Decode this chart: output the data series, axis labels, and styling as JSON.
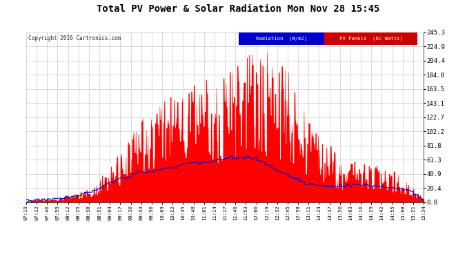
{
  "title": "Total PV Power & Solar Radiation Mon Nov 28 15:45",
  "copyright": "Copyright 2016 Cartronics.com",
  "legend_radiation": "Radiation  (W/m2)",
  "legend_pv": "PV Panels  (DC Watts)",
  "y_right_ticks": [
    0.0,
    20.4,
    40.9,
    61.3,
    81.8,
    102.2,
    122.7,
    143.1,
    163.5,
    184.0,
    204.4,
    224.9,
    245.3
  ],
  "x_tick_labels": [
    "07:19",
    "07:32",
    "07:46",
    "07:59",
    "08:12",
    "08:25",
    "08:38",
    "08:51",
    "09:04",
    "09:17",
    "09:30",
    "09:43",
    "09:56",
    "10:09",
    "10:22",
    "10:35",
    "10:48",
    "11:01",
    "11:14",
    "11:27",
    "11:40",
    "11:53",
    "12:06",
    "12:19",
    "12:32",
    "12:45",
    "12:58",
    "13:11",
    "13:24",
    "13:37",
    "13:50",
    "14:03",
    "14:16",
    "14:29",
    "14:42",
    "14:55",
    "15:08",
    "15:21",
    "15:34"
  ],
  "pv_color": "#ff0000",
  "radiation_color": "#0000cc",
  "bg_color": "#ffffff",
  "plot_bg_color": "#ffffff",
  "grid_color": "#aaaaaa",
  "title_color": "#000000",
  "y_max": 245.3,
  "y_min": 0.0,
  "pv_envelope": [
    3,
    4,
    5,
    7,
    10,
    15,
    22,
    35,
    55,
    75,
    100,
    120,
    138,
    152,
    163,
    170,
    175,
    178,
    182,
    185,
    195,
    210,
    245,
    220,
    205,
    198,
    148,
    120,
    102,
    90,
    55,
    60,
    65,
    58,
    52,
    48,
    38,
    22,
    5
  ],
  "rad_envelope": [
    2,
    2,
    3,
    4,
    6,
    9,
    14,
    20,
    28,
    34,
    38,
    42,
    45,
    48,
    51,
    54,
    56,
    58,
    60,
    62,
    63,
    65,
    62,
    55,
    45,
    40,
    32,
    26,
    24,
    22,
    22,
    24,
    25,
    23,
    22,
    20,
    18,
    14,
    3
  ]
}
